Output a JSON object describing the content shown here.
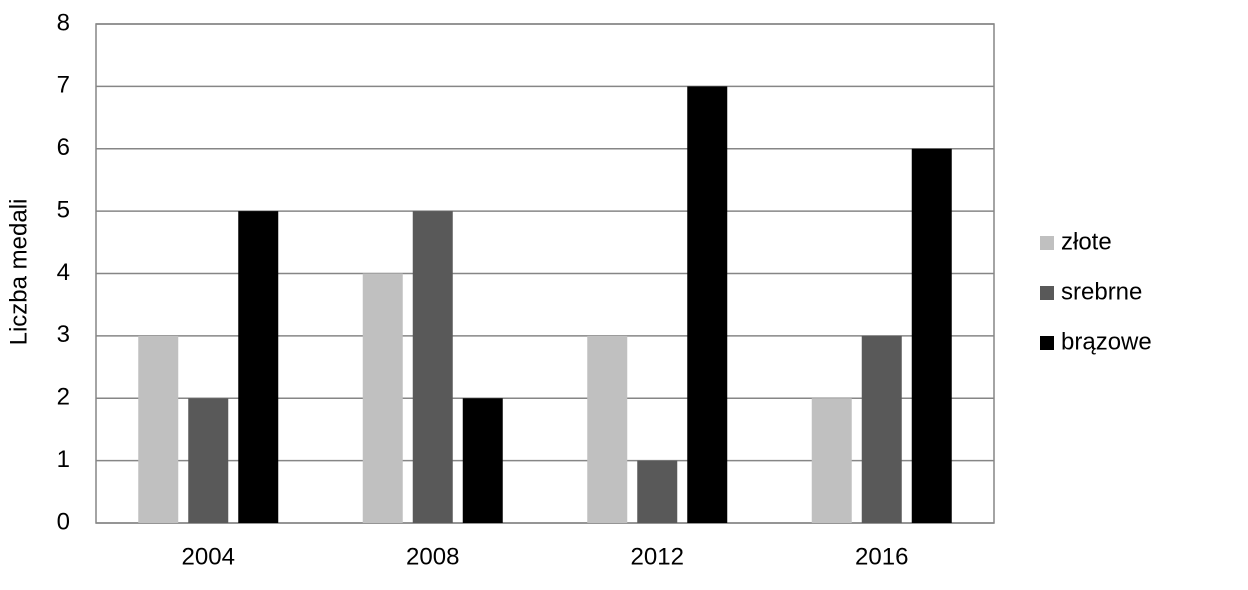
{
  "chart_data": {
    "type": "bar",
    "y_label": "Liczba medali",
    "categories": [
      "2004",
      "2008",
      "2012",
      "2016"
    ],
    "series": [
      {
        "name": "złote",
        "color": "#c0c0c0",
        "values": [
          3,
          4,
          3,
          2
        ]
      },
      {
        "name": "srebrne",
        "color": "#595959",
        "values": [
          2,
          5,
          1,
          3
        ]
      },
      {
        "name": "brązowe",
        "color": "#000000",
        "values": [
          5,
          2,
          7,
          6
        ]
      }
    ],
    "ylim": [
      0,
      8
    ],
    "yticks": [
      0,
      1,
      2,
      3,
      4,
      5,
      6,
      7,
      8
    ],
    "grid": true,
    "legend": "right"
  }
}
